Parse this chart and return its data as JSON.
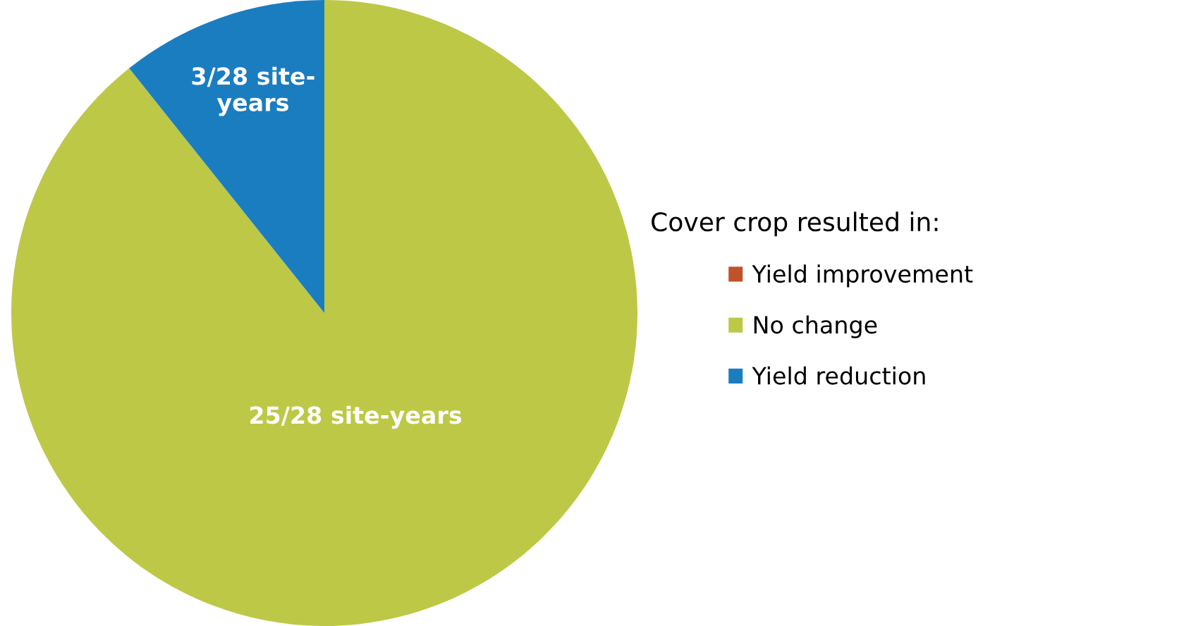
{
  "chart_data": {
    "type": "pie",
    "categories": [
      "Yield improvement",
      "No change",
      "Yield reduction"
    ],
    "values": [
      0,
      25,
      3
    ],
    "colors": [
      "#c0522a",
      "#bdc847",
      "#1a7dc0"
    ],
    "value_labels": [
      null,
      "25/28 site-years",
      "3/28 site-\nyears"
    ],
    "legend_title": "Cover crop resulted in:",
    "legend": "right"
  }
}
